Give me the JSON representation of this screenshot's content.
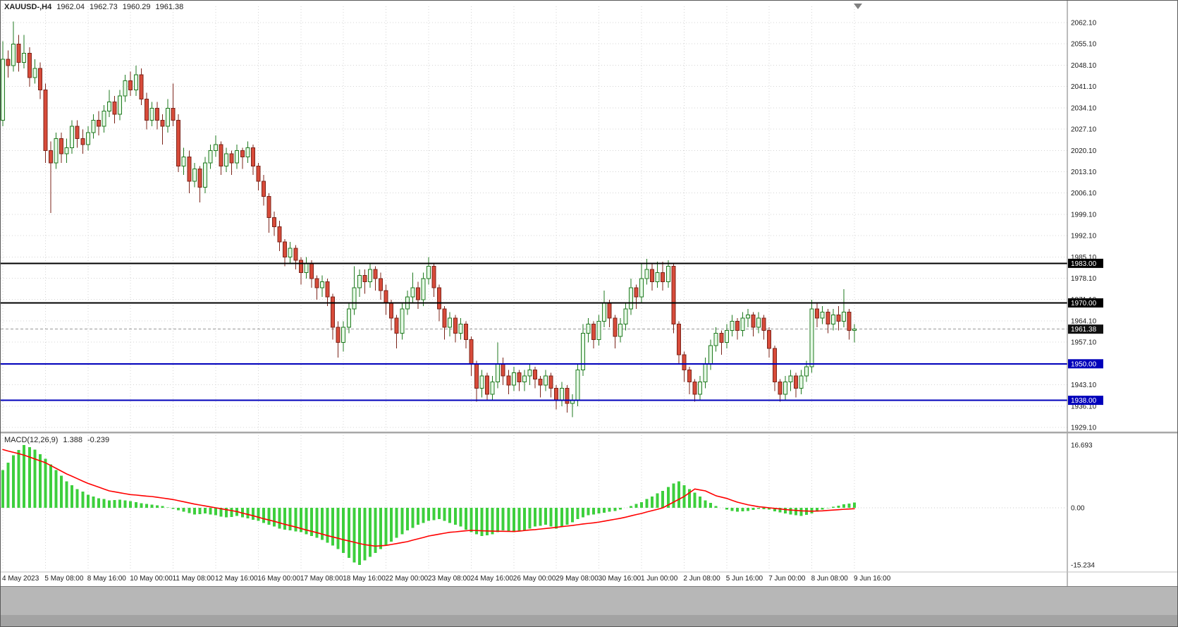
{
  "header": {
    "symbol_period": "XAUUSD-,H4",
    "open": "1962.04",
    "high": "1962.73",
    "low": "1960.29",
    "close": "1961.38"
  },
  "macd_panel": {
    "label": "MACD(12,26,9)",
    "macd_value": "1.388",
    "signal_value": "-0.239"
  },
  "chart_data": {
    "type": "candlestick",
    "symbol": "XAUUSD-",
    "timeframe": "H4",
    "quote": {
      "open": 1962.04,
      "high": 1962.73,
      "low": 1960.29,
      "close": 1961.38
    },
    "price_axis": {
      "labels": [
        "2062.10",
        "2055.10",
        "2048.10",
        "2041.10",
        "2034.10",
        "2027.10",
        "2020.10",
        "2013.10",
        "2006.10",
        "1999.10",
        "1992.10",
        "1985.10",
        "1978.10",
        "1971.10",
        "1964.10",
        "1957.10",
        "1950.10",
        "1943.10",
        "1936.10",
        "1929.10"
      ],
      "grid_step": 7.0
    },
    "time_axis": {
      "labels": [
        "4 May 2023",
        "5 May 08:00",
        "8 May 16:00",
        "10 May 00:00",
        "11 May 08:00",
        "12 May 16:00",
        "16 May 00:00",
        "17 May 08:00",
        "18 May 16:00",
        "22 May 00:00",
        "23 May 08:00",
        "24 May 16:00",
        "26 May 00:00",
        "29 May 08:00",
        "30 May 16:00",
        "1 Jun 00:00",
        "2 Jun 08:00",
        "5 Jun 16:00",
        "7 Jun 00:00",
        "8 Jun 08:00",
        "9 Jun 16:00"
      ],
      "candles_per_label": 8
    },
    "candles": [
      [
        2030,
        2056,
        2028,
        2050
      ],
      [
        2050,
        2053,
        2044,
        2048
      ],
      [
        2048,
        2062.5,
        2046,
        2055
      ],
      [
        2055,
        2058,
        2046,
        2049
      ],
      [
        2049,
        2058,
        2047,
        2052
      ],
      [
        2052,
        2054,
        2041,
        2044
      ],
      [
        2044,
        2050,
        2042,
        2047
      ],
      [
        2047,
        2049,
        2037,
        2040
      ],
      [
        2040,
        2042,
        2016,
        2020
      ],
      [
        2020,
        2023,
        1999.5,
        2016
      ],
      [
        2016,
        2026,
        2014,
        2024
      ],
      [
        2024,
        2026,
        2016,
        2019
      ],
      [
        2019,
        2024,
        2016,
        2021
      ],
      [
        2021,
        2030,
        2019,
        2028
      ],
      [
        2028,
        2030,
        2021,
        2024
      ],
      [
        2024,
        2027,
        2019,
        2022
      ],
      [
        2022,
        2028,
        2020,
        2026
      ],
      [
        2026,
        2032,
        2024,
        2030
      ],
      [
        2030,
        2033,
        2025,
        2028
      ],
      [
        2028,
        2035,
        2026,
        2033
      ],
      [
        2033,
        2040,
        2031,
        2036
      ],
      [
        2036,
        2038,
        2029,
        2032
      ],
      [
        2032,
        2040,
        2030,
        2038
      ],
      [
        2038,
        2045,
        2036,
        2043
      ],
      [
        2043,
        2046,
        2038,
        2040
      ],
      [
        2040,
        2048,
        2038,
        2045
      ],
      [
        2045,
        2047,
        2035,
        2037
      ],
      [
        2037,
        2039,
        2027,
        2030
      ],
      [
        2030,
        2036,
        2028,
        2034
      ],
      [
        2034,
        2036,
        2027,
        2030
      ],
      [
        2030,
        2032,
        2022,
        2028
      ],
      [
        2028,
        2037,
        2026,
        2034
      ],
      [
        2034,
        2042,
        2028,
        2030
      ],
      [
        2030,
        2032,
        2013,
        2015
      ],
      [
        2015,
        2021,
        2012,
        2018
      ],
      [
        2018,
        2020,
        2006,
        2010
      ],
      [
        2010,
        2016,
        2008,
        2014
      ],
      [
        2014,
        2015,
        2003,
        2008
      ],
      [
        2008,
        2018,
        2006,
        2016
      ],
      [
        2016,
        2022,
        2014,
        2020
      ],
      [
        2020,
        2025,
        2018,
        2022
      ],
      [
        2022,
        2023,
        2012,
        2015
      ],
      [
        2015,
        2021,
        2013,
        2019
      ],
      [
        2019,
        2020,
        2012,
        2016
      ],
      [
        2016,
        2022,
        2014,
        2020
      ],
      [
        2020,
        2021,
        2014,
        2018
      ],
      [
        2018,
        2023,
        2016,
        2021
      ],
      [
        2021,
        2022,
        2012,
        2015
      ],
      [
        2015,
        2016,
        2007,
        2010
      ],
      [
        2010,
        2012,
        2002,
        2005
      ],
      [
        2005,
        2006,
        1993,
        1998
      ],
      [
        1998,
        2000,
        1992,
        1995
      ],
      [
        1995,
        1997,
        1987,
        1990
      ],
      [
        1990,
        1991,
        1982,
        1985
      ],
      [
        1985,
        1990,
        1983,
        1988
      ],
      [
        1988,
        1989,
        1981,
        1984
      ],
      [
        1984,
        1985,
        1976,
        1980
      ],
      [
        1980,
        1985,
        1978,
        1983
      ],
      [
        1983,
        1984,
        1975,
        1978
      ],
      [
        1978,
        1979,
        1971,
        1975
      ],
      [
        1975,
        1979,
        1972,
        1977
      ],
      [
        1977,
        1978,
        1969,
        1972
      ],
      [
        1972,
        1973,
        1958,
        1962
      ],
      [
        1962,
        1964,
        1952,
        1957
      ],
      [
        1957,
        1964,
        1954,
        1962
      ],
      [
        1962,
        1970,
        1960,
        1968
      ],
      [
        1968,
        1982,
        1966,
        1975
      ],
      [
        1975,
        1981,
        1972,
        1979
      ],
      [
        1979,
        1981,
        1973,
        1977
      ],
      [
        1977,
        1983,
        1975,
        1981
      ],
      [
        1981,
        1982,
        1974,
        1978
      ],
      [
        1978,
        1980,
        1971,
        1974
      ],
      [
        1974,
        1976,
        1966,
        1970
      ],
      [
        1970,
        1971,
        1961,
        1965
      ],
      [
        1965,
        1966,
        1955,
        1960
      ],
      [
        1960,
        1970,
        1958,
        1968
      ],
      [
        1968,
        1974,
        1966,
        1972
      ],
      [
        1972,
        1980,
        1970,
        1975
      ],
      [
        1975,
        1977,
        1968,
        1971
      ],
      [
        1971,
        1980,
        1969,
        1978
      ],
      [
        1978,
        1985,
        1976,
        1982
      ],
      [
        1982,
        1983,
        1972,
        1975
      ],
      [
        1975,
        1976,
        1964,
        1968
      ],
      [
        1968,
        1969,
        1958,
        1962
      ],
      [
        1962,
        1967,
        1959,
        1965
      ],
      [
        1965,
        1966,
        1957,
        1960
      ],
      [
        1960,
        1965,
        1958,
        1963
      ],
      [
        1963,
        1964,
        1955,
        1958
      ],
      [
        1958,
        1959,
        1946,
        1950
      ],
      [
        1950,
        1951,
        1937.5,
        1942
      ],
      [
        1942,
        1948,
        1939,
        1946
      ],
      [
        1946,
        1947,
        1938,
        1940
      ],
      [
        1940,
        1946,
        1938,
        1944
      ],
      [
        1944,
        1957,
        1942,
        1950
      ],
      [
        1950,
        1952,
        1943,
        1946
      ],
      [
        1946,
        1948,
        1940,
        1943
      ],
      [
        1943,
        1949,
        1941,
        1947
      ],
      [
        1947,
        1948,
        1941,
        1944
      ],
      [
        1944,
        1948,
        1941,
        1946
      ],
      [
        1946,
        1950,
        1943,
        1948
      ],
      [
        1948,
        1949,
        1942,
        1945
      ],
      [
        1945,
        1946,
        1939,
        1943
      ],
      [
        1943,
        1948,
        1941,
        1946
      ],
      [
        1946,
        1947,
        1939,
        1942
      ],
      [
        1942,
        1943,
        1935,
        1938
      ],
      [
        1938,
        1944,
        1936,
        1942
      ],
      [
        1942,
        1943,
        1934,
        1937
      ],
      [
        1937,
        1940,
        1932.5,
        1938
      ],
      [
        1938,
        1950,
        1936,
        1948
      ],
      [
        1948,
        1963,
        1946,
        1960
      ],
      [
        1960,
        1965,
        1957,
        1963
      ],
      [
        1963,
        1964,
        1955,
        1958
      ],
      [
        1958,
        1966,
        1956,
        1964
      ],
      [
        1964,
        1974,
        1962,
        1970
      ],
      [
        1970,
        1971,
        1962,
        1965
      ],
      [
        1965,
        1966,
        1955,
        1959
      ],
      [
        1959,
        1965,
        1957,
        1963
      ],
      [
        1963,
        1970,
        1961,
        1968
      ],
      [
        1968,
        1978,
        1966,
        1975
      ],
      [
        1975,
        1976,
        1968,
        1972
      ],
      [
        1972,
        1983,
        1970,
        1978
      ],
      [
        1978,
        1984.5,
        1976,
        1981
      ],
      [
        1981,
        1983,
        1974,
        1977
      ],
      [
        1977,
        1983.5,
        1975,
        1980
      ],
      [
        1980,
        1983.5,
        1974,
        1977
      ],
      [
        1977,
        1984,
        1975,
        1982
      ],
      [
        1982,
        1983,
        1960,
        1963
      ],
      [
        1963,
        1964,
        1950,
        1953
      ],
      [
        1953,
        1954,
        1944,
        1948
      ],
      [
        1948,
        1949,
        1940,
        1944
      ],
      [
        1944,
        1945,
        1937.5,
        1940
      ],
      [
        1940,
        1946,
        1938,
        1944
      ],
      [
        1944,
        1952,
        1942,
        1950
      ],
      [
        1950,
        1958,
        1948,
        1956
      ],
      [
        1956,
        1962,
        1954,
        1960
      ],
      [
        1960,
        1961,
        1953,
        1957
      ],
      [
        1957,
        1963,
        1955,
        1961
      ],
      [
        1961,
        1966,
        1959,
        1964
      ],
      [
        1964,
        1965,
        1958,
        1961
      ],
      [
        1961,
        1967,
        1959,
        1965
      ],
      [
        1965,
        1968,
        1962,
        1966
      ],
      [
        1966,
        1967,
        1959,
        1962
      ],
      [
        1962,
        1967,
        1960,
        1965
      ],
      [
        1965,
        1966,
        1958,
        1961
      ],
      [
        1961,
        1962,
        1952,
        1955
      ],
      [
        1955,
        1956,
        1941,
        1944
      ],
      [
        1944,
        1945,
        1937.5,
        1940
      ],
      [
        1940,
        1946,
        1938,
        1944
      ],
      [
        1944,
        1948,
        1941,
        1946
      ],
      [
        1946,
        1947,
        1939,
        1942
      ],
      [
        1942,
        1948,
        1940,
        1946
      ],
      [
        1946,
        1951,
        1944,
        1949
      ],
      [
        1949,
        1971,
        1947,
        1968
      ],
      [
        1968,
        1970,
        1962,
        1965
      ],
      [
        1965,
        1969,
        1963,
        1967
      ],
      [
        1967,
        1968,
        1960,
        1963
      ],
      [
        1963,
        1968,
        1961,
        1966
      ],
      [
        1966,
        1969,
        1961,
        1964
      ],
      [
        1964,
        1974.5,
        1962,
        1967
      ],
      [
        1967,
        1968,
        1958,
        1961
      ],
      [
        1961,
        1963,
        1957,
        1961.38
      ]
    ],
    "horizontal_lines": [
      {
        "price": 1983.0,
        "label": "1983.00",
        "color": "#000000"
      },
      {
        "price": 1970.0,
        "label": "1970.00",
        "color": "#000000"
      },
      {
        "price": 1950.0,
        "label": "1950.00",
        "color": "#0000bb"
      },
      {
        "price": 1938.0,
        "label": "1938.00",
        "color": "#0000bb"
      }
    ],
    "current_price": {
      "value": 1961.38,
      "label": "1961.38",
      "badge_color": "#111111"
    },
    "macd": {
      "params": "12,26,9",
      "macd_value": 1.388,
      "signal_value": -0.239,
      "axis_labels": [
        "16.693",
        "0.00",
        "-15.234"
      ],
      "range": [
        -15.234,
        16.693
      ],
      "histogram": [
        10,
        12,
        14,
        15.4,
        16.7,
        16.1,
        15.5,
        14.3,
        13,
        11.5,
        10,
        8.5,
        7,
        6,
        5,
        4.3,
        3.5,
        3,
        2.5,
        2.3,
        2,
        2.1,
        2.2,
        2,
        1.8,
        1.5,
        1.2,
        1,
        0.8,
        0.7,
        0.5,
        0.1,
        -0.3,
        -0.7,
        -1,
        -1.4,
        -1.8,
        -1.7,
        -1.5,
        -1.8,
        -2,
        -2.3,
        -2.5,
        -2.4,
        -2.2,
        -2.5,
        -2.8,
        -3.2,
        -3.5,
        -4,
        -4.5,
        -5,
        -5.5,
        -5.8,
        -6,
        -6.3,
        -6.5,
        -7,
        -7.5,
        -8,
        -8.5,
        -9.3,
        -10,
        -11,
        -12,
        -13.3,
        -14.5,
        -15.2,
        -14,
        -13,
        -12,
        -11,
        -10,
        -9,
        -8,
        -7,
        -6,
        -5.3,
        -4.5,
        -4,
        -3.5,
        -3.3,
        -3,
        -3.5,
        -4,
        -4.5,
        -5,
        -5.8,
        -6.5,
        -7,
        -7.5,
        -7.3,
        -7,
        -6.5,
        -6,
        -6.3,
        -6.5,
        -6.3,
        -6,
        -5.5,
        -5,
        -4.8,
        -4.5,
        -5,
        -5.5,
        -5,
        -4.5,
        -3.8,
        -3,
        -2.5,
        -2,
        -1.8,
        -1.5,
        -1.3,
        -1,
        -0.8,
        -0.5,
        0,
        0.5,
        1,
        1.5,
        2.3,
        3,
        3.8,
        4.5,
        5.5,
        6.5,
        7,
        6,
        5,
        4,
        3,
        2,
        1.3,
        0.5,
        0,
        -0.5,
        -0.8,
        -1,
        -0.9,
        -0.8,
        -0.6,
        -0.3,
        -0.4,
        -0.5,
        -0.9,
        -1.2,
        -1.5,
        -1.8,
        -2,
        -2.2,
        -1.9,
        -1.5,
        -1,
        -0.5,
        -0.1,
        0.3,
        0.6,
        0.9,
        1.1,
        1.388
      ],
      "signal": [
        15.5,
        15.1,
        14.75,
        14.4,
        14,
        13.5,
        13,
        12.5,
        12,
        11.25,
        10.5,
        9.75,
        9,
        8.4,
        7.75,
        7.1,
        6.5,
        6,
        5.5,
        5,
        4.5,
        4.25,
        4,
        3.75,
        3.5,
        3.4,
        3.25,
        3.1,
        3,
        2.8,
        2.6,
        2.4,
        2.2,
        1.9,
        1.6,
        1.3,
        1,
        0.75,
        0.5,
        0.25,
        0,
        -0.25,
        -0.5,
        -0.75,
        -1,
        -1.4,
        -1.75,
        -2.1,
        -2.5,
        -2.9,
        -3.25,
        -3.6,
        -4,
        -4.4,
        -4.75,
        -5.1,
        -5.5,
        -5.9,
        -6.25,
        -6.6,
        -7,
        -7.4,
        -7.75,
        -8.1,
        -8.5,
        -8.8,
        -9.15,
        -9.5,
        -9.8,
        -10,
        -10.2,
        -10.1,
        -10,
        -9.75,
        -9.5,
        -9.25,
        -9,
        -8.6,
        -8.25,
        -7.9,
        -7.5,
        -7.25,
        -7,
        -6.75,
        -6.5,
        -6.4,
        -6.25,
        -6.1,
        -6,
        -6.05,
        -6.1,
        -6.15,
        -6.2,
        -6.22,
        -6.25,
        -6.28,
        -6.3,
        -6.2,
        -6.05,
        -5.9,
        -5.8,
        -5.65,
        -5.5,
        -5.35,
        -5.2,
        -5,
        -4.85,
        -4.7,
        -4.5,
        -4.3,
        -4.15,
        -4,
        -3.8,
        -3.55,
        -3.3,
        -3.05,
        -2.8,
        -2.5,
        -2.15,
        -1.8,
        -1.5,
        -1.1,
        -0.75,
        -0.4,
        0,
        0.75,
        1.5,
        2.25,
        3,
        4,
        5,
        4.75,
        4.5,
        3.85,
        3.2,
        2.85,
        2.5,
        2,
        1.5,
        1.15,
        0.8,
        0.55,
        0.3,
        0.15,
        0,
        -0.15,
        -0.3,
        -0.45,
        -0.6,
        -0.7,
        -0.8,
        -0.85,
        -0.9,
        -0.85,
        -0.8,
        -0.7,
        -0.6,
        -0.5,
        -0.4,
        -0.32,
        -0.24
      ]
    },
    "style": {
      "bull_body": "#e6f9e6",
      "bull_edge": "#1f7a1f",
      "bear_body": "#d84b3a",
      "bear_edge": "#7c241a",
      "histogram_color": "#3dcf3d",
      "signal_color": "#ff0000",
      "grid_color": "#d4d4d4",
      "axis_text": "#1a1a1a",
      "current_line": "#999999"
    }
  }
}
